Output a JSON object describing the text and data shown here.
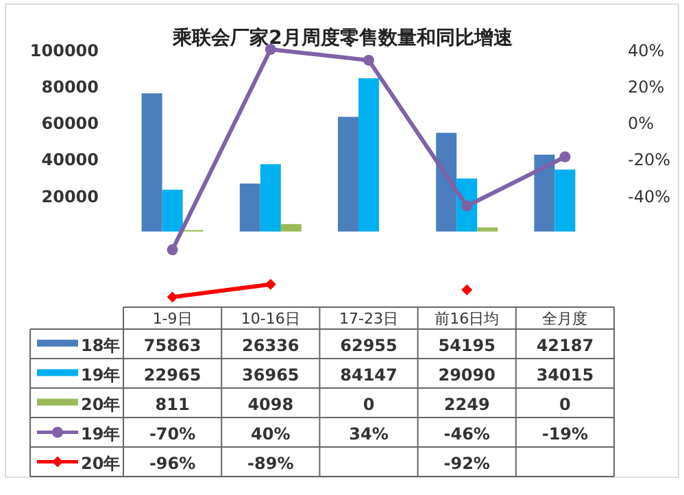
{
  "chart_data": {
    "type": "bar",
    "title": "乘联会厂家2月周度零售数量和同比增速",
    "categories": [
      "1-9日",
      "10-16日",
      "17-23日",
      "前16日均",
      "全月度"
    ],
    "series": [
      {
        "name": "18年",
        "color": "#4a7ebf",
        "values": [
          75863,
          26336,
          62955,
          54195,
          42187
        ],
        "value_labels": [
          "75863",
          "26336",
          "62955",
          "54195",
          "42187"
        ]
      },
      {
        "name": "19年",
        "color": "#00b0f0",
        "values": [
          22965,
          36965,
          84147,
          29090,
          34015
        ],
        "value_labels": [
          "22965",
          "36965",
          "84147",
          "29090",
          "34015"
        ]
      },
      {
        "name": "20年",
        "color": "#9bbb59",
        "values": [
          811,
          4098,
          0,
          2249,
          0
        ],
        "value_labels": [
          "811",
          "4098",
          "0",
          "2249",
          "0"
        ]
      },
      {
        "name": "19年",
        "type": "line",
        "axis": "y2",
        "marker": "circle",
        "color": "#7f62a8",
        "values": [
          -70,
          40,
          34,
          -46,
          -19
        ],
        "value_labels": [
          "-70%",
          "40%",
          "34%",
          "-46%",
          "-19%"
        ]
      },
      {
        "name": "20年",
        "type": "line",
        "axis": "y2",
        "marker": "diamond",
        "color": "#ff0000",
        "values": [
          -96,
          -89,
          null,
          -92,
          null
        ],
        "value_labels": [
          "-96%",
          "-89%",
          null,
          "-92%",
          null
        ]
      }
    ],
    "ylim": [
      -40000,
      100000
    ],
    "yticks": [
      20000,
      40000,
      60000,
      80000,
      100000
    ],
    "y2lim": [
      -100,
      40
    ],
    "y2ticks": [
      {
        "value": -40,
        "label": "-40%"
      },
      {
        "value": -20,
        "label": "-20%"
      },
      {
        "value": 0,
        "label": "0%"
      },
      {
        "value": 20,
        "label": "20%"
      },
      {
        "value": 40,
        "label": "40%"
      }
    ],
    "legend": "bottom"
  }
}
